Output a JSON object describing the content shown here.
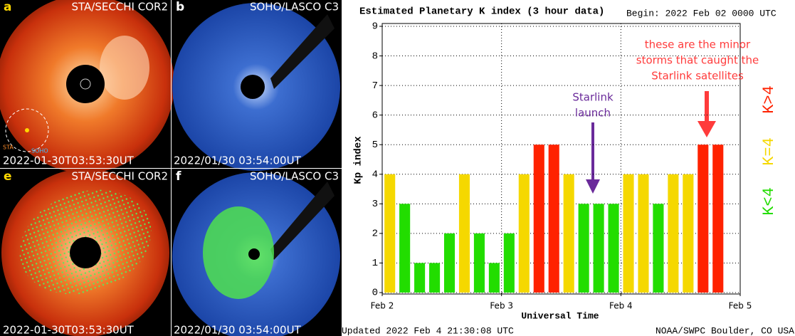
{
  "panels": [
    {
      "letter": "a",
      "instrument": "STA/SECCHI COR2",
      "timestamp": "2022-01-30T03:53:30UT"
    },
    {
      "letter": "b",
      "instrument": "SOHO/LASCO C3",
      "timestamp": "2022/01/30 03:54:00UT"
    },
    {
      "letter": "e",
      "instrument": "STA/SECCHI COR2",
      "timestamp": "2022-01-30T03:53:30UT"
    },
    {
      "letter": "f",
      "instrument": "SOHO/LASCO C3",
      "timestamp": "2022/01/30 03:54:00UT"
    }
  ],
  "orbit_labels": [
    "STA",
    "SOHO"
  ],
  "chart_data": {
    "type": "bar",
    "title": "Estimated Planetary K index (3 hour data)",
    "subtitle": "Begin:  2022 Feb 02 0000 UTC",
    "y_label": "Kp index",
    "x_label": "Universal Time",
    "footer_left": "Updated 2022 Feb  4 21:30:08 UTC",
    "footer_right": "NOAA/SWPC Boulder, CO USA",
    "x": [
      2,
      2.125,
      2.25,
      2.375,
      2.5,
      2.625,
      2.75,
      2.875,
      3,
      3.125,
      3.25,
      3.375,
      3.5,
      3.625,
      3.75,
      3.875,
      4,
      4.125,
      4.25,
      4.375,
      4.5,
      4.625,
      4.75
    ],
    "values": [
      4,
      3,
      1,
      1,
      2,
      4,
      2,
      1,
      2,
      4,
      5,
      5,
      4,
      3,
      3,
      3,
      4,
      4,
      3,
      4,
      4,
      5,
      5
    ],
    "colors": [
      "#f5d800",
      "#22dd00",
      "#22dd00",
      "#22dd00",
      "#22dd00",
      "#f5d800",
      "#22dd00",
      "#22dd00",
      "#22dd00",
      "#f5d800",
      "#ff2200",
      "#ff2200",
      "#f5d800",
      "#22dd00",
      "#22dd00",
      "#22dd00",
      "#f5d800",
      "#f5d800",
      "#22dd00",
      "#f5d800",
      "#f5d800",
      "#ff2200",
      "#ff2200"
    ],
    "xlim": [
      2,
      5
    ],
    "xticks": [
      {
        "value": 2,
        "label": "Feb 2"
      },
      {
        "value": 3,
        "label": "Feb 3"
      },
      {
        "value": 4,
        "label": "Feb 4"
      },
      {
        "value": 5,
        "label": "Feb 5"
      }
    ],
    "ylim": [
      0,
      9
    ],
    "yticks": [
      0,
      1,
      2,
      3,
      4,
      5,
      6,
      7,
      8,
      9
    ],
    "grid": true,
    "legend": [
      {
        "label": "K<4",
        "color": "#22dd00"
      },
      {
        "label": "K=4",
        "color": "#f5d800"
      },
      {
        "label": "K>4",
        "color": "#ff2200"
      }
    ],
    "annotations": [
      {
        "lines": [
          "Starlink",
          "launch"
        ],
        "color": "#6a2a9a"
      },
      {
        "lines": [
          "these are the minor",
          "storms that caught the",
          "Starlink satellites"
        ],
        "color": "#ff3b3b"
      }
    ]
  }
}
